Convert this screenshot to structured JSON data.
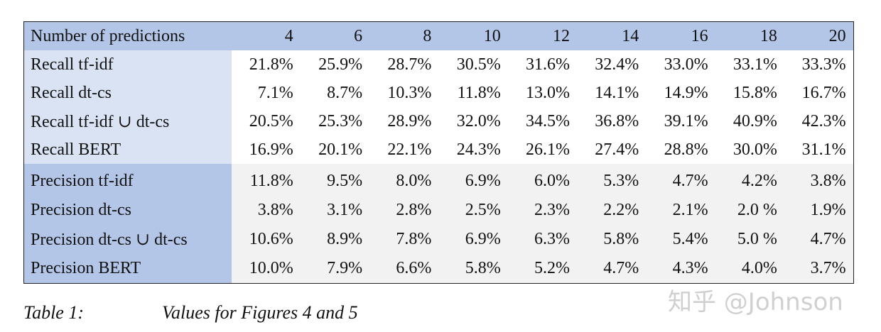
{
  "table": {
    "header": [
      "Number of predictions",
      "4",
      "6",
      "8",
      "10",
      "12",
      "14",
      "16",
      "18",
      "20"
    ],
    "recall_rows": [
      [
        "Recall tf-idf",
        "21.8%",
        "25.9%",
        "28.7%",
        "30.5%",
        "31.6%",
        "32.4%",
        "33.0%",
        "33.1%",
        "33.3%"
      ],
      [
        "Recall dt-cs",
        "7.1%",
        "8.7%",
        "10.3%",
        "11.8%",
        "13.0%",
        "14.1%",
        "14.9%",
        "15.8%",
        "16.7%"
      ],
      [
        "Recall tf-idf ∪ dt-cs",
        "20.5%",
        "25.3%",
        "28.9%",
        "32.0%",
        "34.5%",
        "36.8%",
        "39.1%",
        "40.9%",
        "42.3%"
      ],
      [
        "Recall BERT",
        "16.9%",
        "20.1%",
        "22.1%",
        "24.3%",
        "26.1%",
        "27.4%",
        "28.8%",
        "30.0%",
        "31.1%"
      ]
    ],
    "precision_rows": [
      [
        "Precision tf-idf",
        "11.8%",
        "9.5%",
        "8.0%",
        "6.9%",
        "6.0%",
        "5.3%",
        "4.7%",
        "4.2%",
        "3.8%"
      ],
      [
        "Precision dt-cs",
        "3.8%",
        "3.1%",
        "2.8%",
        "2.5%",
        "2.3%",
        "2.2%",
        "2.1%",
        "2.0 %",
        "1.9%"
      ],
      [
        "Precision dt-cs ∪ dt-cs",
        "10.6%",
        "8.9%",
        "7.8%",
        "6.9%",
        "6.3%",
        "5.8%",
        "5.4%",
        "5.0 %",
        "4.7%"
      ],
      [
        "Precision BERT",
        "10.0%",
        "7.9%",
        "6.6%",
        "5.8%",
        "5.2%",
        "4.7%",
        "4.3%",
        "4.0%",
        "3.7%"
      ]
    ]
  },
  "caption": {
    "label": "Table 1:",
    "text": "Values for Figures 4 and 5"
  },
  "watermark": "知乎 @Johnson"
}
